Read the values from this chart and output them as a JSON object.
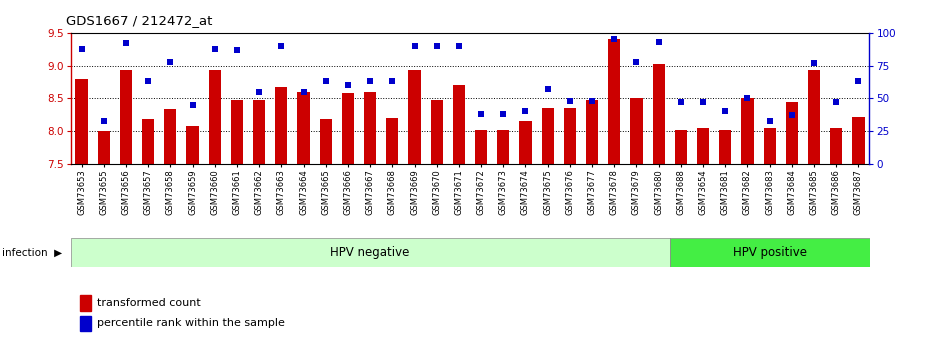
{
  "title": "GDS1667 / 212472_at",
  "samples": [
    "GSM73653",
    "GSM73655",
    "GSM73656",
    "GSM73657",
    "GSM73658",
    "GSM73659",
    "GSM73660",
    "GSM73661",
    "GSM73662",
    "GSM73663",
    "GSM73664",
    "GSM73665",
    "GSM73666",
    "GSM73667",
    "GSM73668",
    "GSM73669",
    "GSM73670",
    "GSM73671",
    "GSM73672",
    "GSM73673",
    "GSM73674",
    "GSM73675",
    "GSM73676",
    "GSM73677",
    "GSM73678",
    "GSM73679",
    "GSM73680",
    "GSM73688",
    "GSM73654",
    "GSM73681",
    "GSM73682",
    "GSM73683",
    "GSM73684",
    "GSM73685",
    "GSM73686",
    "GSM73687"
  ],
  "bar_values": [
    8.8,
    8.0,
    8.93,
    8.18,
    8.33,
    8.08,
    8.93,
    8.48,
    8.48,
    8.67,
    8.6,
    8.18,
    8.58,
    8.6,
    8.2,
    8.93,
    8.48,
    8.7,
    8.02,
    8.02,
    8.15,
    8.35,
    8.35,
    8.48,
    9.4,
    8.5,
    9.03,
    8.02,
    8.05,
    8.02,
    8.5,
    8.05,
    8.45,
    8.93,
    8.05,
    8.22
  ],
  "percentile_values": [
    88,
    33,
    92,
    63,
    78,
    45,
    88,
    87,
    55,
    90,
    55,
    63,
    60,
    63,
    63,
    90,
    90,
    90,
    38,
    38,
    40,
    57,
    48,
    48,
    95,
    78,
    93,
    47,
    47,
    40,
    50,
    33,
    37,
    77,
    47,
    63
  ],
  "hpv_negative_count": 27,
  "hpv_positive_count": 9,
  "y_min": 7.5,
  "y_max": 9.5,
  "y_ticks_left": [
    7.5,
    8.0,
    8.5,
    9.0,
    9.5
  ],
  "y_ticks_right": [
    0,
    25,
    50,
    75,
    100
  ],
  "bar_color": "#cc0000",
  "percentile_color": "#0000cc",
  "hpv_neg_color": "#ccffcc",
  "hpv_pos_color": "#44ee44",
  "label_bg_color": "#c8c8c8",
  "background_color": "#ffffff"
}
